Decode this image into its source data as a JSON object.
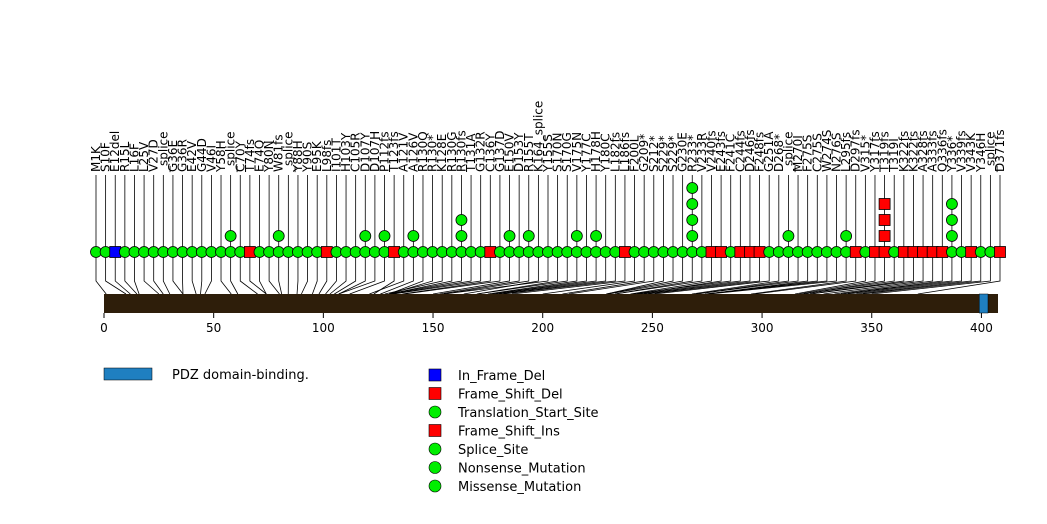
{
  "chart_data": {
    "type": "lollipop",
    "protein_length": 403,
    "axis": {
      "xlim": [
        0,
        403
      ],
      "ticks": [
        0,
        50,
        100,
        150,
        200,
        250,
        300,
        350,
        400
      ]
    },
    "domains": [
      {
        "name": "PDZ domain-binding.",
        "start": 399,
        "end": 403,
        "color": "#1f7fc0"
      }
    ],
    "legend": {
      "domains": [
        {
          "label": "PDZ domain-binding.",
          "color": "#1f7fc0"
        }
      ],
      "mutation_types": [
        {
          "label": "In_Frame_Del",
          "shape": "square",
          "color": "#0000ff"
        },
        {
          "label": "Frame_Shift_Del",
          "shape": "square",
          "color": "#ff0000"
        },
        {
          "label": "Translation_Start_Site",
          "shape": "circle",
          "color": "#00ee00"
        },
        {
          "label": "Frame_Shift_Ins",
          "shape": "square",
          "color": "#ff0000"
        },
        {
          "label": "Splice_Site",
          "shape": "circle",
          "color": "#00ee00"
        },
        {
          "label": "Nonsense_Mutation",
          "shape": "circle",
          "color": "#00ee00"
        },
        {
          "label": "Missense_Mutation",
          "shape": "circle",
          "color": "#00ee00"
        }
      ]
    },
    "mutations": [
      {
        "label": "M1K",
        "pos": 1,
        "count": 1,
        "shape": "circle",
        "color": "#00ee00"
      },
      {
        "label": "S10F",
        "pos": 10,
        "count": 1,
        "shape": "circle",
        "color": "#00ee00"
      },
      {
        "label": "E12del",
        "pos": 12,
        "count": 1,
        "shape": "square",
        "color": "#0000ff"
      },
      {
        "label": "R15L",
        "pos": 15,
        "count": 1,
        "shape": "circle",
        "color": "#00ee00"
      },
      {
        "label": "L16F",
        "pos": 16,
        "count": 1,
        "shape": "circle",
        "color": "#00ee00"
      },
      {
        "label": "L25V",
        "pos": 25,
        "count": 1,
        "shape": "circle",
        "color": "#00ee00"
      },
      {
        "label": "V27D",
        "pos": 27,
        "count": 1,
        "shape": "circle",
        "color": "#00ee00"
      },
      {
        "label": "_splice",
        "pos": 30,
        "count": 1,
        "shape": "circle",
        "color": "#00ee00"
      },
      {
        "label": "G36E",
        "pos": 36,
        "count": 1,
        "shape": "circle",
        "color": "#00ee00"
      },
      {
        "label": "G36R",
        "pos": 36,
        "count": 1,
        "shape": "circle",
        "color": "#00ee00"
      },
      {
        "label": "E42V",
        "pos": 42,
        "count": 1,
        "shape": "circle",
        "color": "#00ee00"
      },
      {
        "label": "G44D",
        "pos": 44,
        "count": 1,
        "shape": "circle",
        "color": "#00ee00"
      },
      {
        "label": "V46I",
        "pos": 46,
        "count": 1,
        "shape": "circle",
        "color": "#00ee00"
      },
      {
        "label": "Y58H",
        "pos": 58,
        "count": 1,
        "shape": "circle",
        "color": "#00ee00"
      },
      {
        "label": "_splice",
        "pos": 61,
        "count": 2,
        "shape": "circle",
        "color": "#00ee00"
      },
      {
        "label": "C70Y",
        "pos": 70,
        "count": 1,
        "shape": "circle",
        "color": "#00ee00"
      },
      {
        "label": "T74fs",
        "pos": 74,
        "count": 1,
        "shape": "square",
        "color": "#ff0000"
      },
      {
        "label": "E74Q",
        "pos": 74,
        "count": 1,
        "shape": "circle",
        "color": "#00ee00"
      },
      {
        "label": "Y80N",
        "pos": 80,
        "count": 1,
        "shape": "circle",
        "color": "#00ee00"
      },
      {
        "label": "W81fs",
        "pos": 81,
        "count": 2,
        "shape": "circle",
        "color": "#00ee00"
      },
      {
        "label": "_splice",
        "pos": 84,
        "count": 1,
        "shape": "circle",
        "color": "#00ee00"
      },
      {
        "label": "Y88H",
        "pos": 88,
        "count": 1,
        "shape": "circle",
        "color": "#00ee00"
      },
      {
        "label": "Y90S",
        "pos": 90,
        "count": 1,
        "shape": "circle",
        "color": "#00ee00"
      },
      {
        "label": "E95K",
        "pos": 95,
        "count": 1,
        "shape": "circle",
        "color": "#00ee00"
      },
      {
        "label": "L98fs",
        "pos": 98,
        "count": 1,
        "shape": "square",
        "color": "#ff0000"
      },
      {
        "label": "I101T",
        "pos": 101,
        "count": 1,
        "shape": "circle",
        "color": "#00ee00"
      },
      {
        "label": "H103Y",
        "pos": 103,
        "count": 1,
        "shape": "circle",
        "color": "#00ee00"
      },
      {
        "label": "C105R",
        "pos": 105,
        "count": 1,
        "shape": "circle",
        "color": "#00ee00"
      },
      {
        "label": "D107Y",
        "pos": 107,
        "count": 2,
        "shape": "circle",
        "color": "#00ee00"
      },
      {
        "label": "D107H",
        "pos": 107,
        "count": 1,
        "shape": "circle",
        "color": "#00ee00"
      },
      {
        "label": "P112fs",
        "pos": 112,
        "count": 2,
        "shape": "circle",
        "color": "#00ee00"
      },
      {
        "label": "T123fs",
        "pos": 123,
        "count": 1,
        "shape": "square",
        "color": "#ff0000"
      },
      {
        "label": "A121V",
        "pos": 121,
        "count": 1,
        "shape": "circle",
        "color": "#00ee00"
      },
      {
        "label": "A126V",
        "pos": 126,
        "count": 2,
        "shape": "circle",
        "color": "#00ee00"
      },
      {
        "label": "R130Q",
        "pos": 130,
        "count": 1,
        "shape": "circle",
        "color": "#00ee00"
      },
      {
        "label": "R130*",
        "pos": 130,
        "count": 1,
        "shape": "circle",
        "color": "#00ee00"
      },
      {
        "label": "K128E",
        "pos": 128,
        "count": 1,
        "shape": "circle",
        "color": "#00ee00"
      },
      {
        "label": "R130G",
        "pos": 130,
        "count": 1,
        "shape": "circle",
        "color": "#00ee00"
      },
      {
        "label": "R130fs",
        "pos": 130,
        "count": 3,
        "shape": "circle",
        "color": "#00ee00"
      },
      {
        "label": "T131A",
        "pos": 131,
        "count": 1,
        "shape": "circle",
        "color": "#00ee00"
      },
      {
        "label": "G132R",
        "pos": 132,
        "count": 1,
        "shape": "circle",
        "color": "#00ee00"
      },
      {
        "label": "C136Y",
        "pos": 136,
        "count": 1,
        "shape": "square",
        "color": "#ff0000"
      },
      {
        "label": "G137D",
        "pos": 137,
        "count": 1,
        "shape": "circle",
        "color": "#00ee00"
      },
      {
        "label": "E150V",
        "pos": 150,
        "count": 2,
        "shape": "circle",
        "color": "#00ee00"
      },
      {
        "label": "D153Y",
        "pos": 153,
        "count": 1,
        "shape": "circle",
        "color": "#00ee00"
      },
      {
        "label": "R155T",
        "pos": 155,
        "count": 2,
        "shape": "circle",
        "color": "#00ee00"
      },
      {
        "label": "K164_splice",
        "pos": 164,
        "count": 1,
        "shape": "circle",
        "color": "#00ee00"
      },
      {
        "label": "Y155S",
        "pos": 155,
        "count": 1,
        "shape": "circle",
        "color": "#00ee00"
      },
      {
        "label": "S170N",
        "pos": 170,
        "count": 1,
        "shape": "circle",
        "color": "#00ee00"
      },
      {
        "label": "S170G",
        "pos": 170,
        "count": 1,
        "shape": "circle",
        "color": "#00ee00"
      },
      {
        "label": "V175N",
        "pos": 175,
        "count": 2,
        "shape": "circle",
        "color": "#00ee00"
      },
      {
        "label": "Y177C",
        "pos": 177,
        "count": 1,
        "shape": "circle",
        "color": "#00ee00"
      },
      {
        "label": "H178H",
        "pos": 178,
        "count": 2,
        "shape": "circle",
        "color": "#00ee00"
      },
      {
        "label": "Y180C",
        "pos": 180,
        "count": 1,
        "shape": "circle",
        "color": "#00ee00"
      },
      {
        "label": "L182fs",
        "pos": 182,
        "count": 1,
        "shape": "circle",
        "color": "#00ee00"
      },
      {
        "label": "L186fs",
        "pos": 186,
        "count": 1,
        "shape": "square",
        "color": "#ff0000"
      },
      {
        "label": "F200L",
        "pos": 200,
        "count": 1,
        "shape": "circle",
        "color": "#00ee00"
      },
      {
        "label": "G209*",
        "pos": 209,
        "count": 1,
        "shape": "circle",
        "color": "#00ee00"
      },
      {
        "label": "S212*",
        "pos": 212,
        "count": 1,
        "shape": "circle",
        "color": "#00ee00"
      },
      {
        "label": "S229*",
        "pos": 229,
        "count": 1,
        "shape": "circle",
        "color": "#00ee00"
      },
      {
        "label": "S229*",
        "pos": 229,
        "count": 1,
        "shape": "circle",
        "color": "#00ee00"
      },
      {
        "label": "G230E",
        "pos": 230,
        "count": 1,
        "shape": "circle",
        "color": "#00ee00"
      },
      {
        "label": "R233*",
        "pos": 233,
        "count": 5,
        "shape": "circle",
        "color": "#00ee00"
      },
      {
        "label": "V233R",
        "pos": 233,
        "count": 1,
        "shape": "circle",
        "color": "#00ee00"
      },
      {
        "label": "V240fs",
        "pos": 240,
        "count": 1,
        "shape": "square",
        "color": "#ff0000"
      },
      {
        "label": "E243fs",
        "pos": 243,
        "count": 1,
        "shape": "square",
        "color": "#ff0000"
      },
      {
        "label": "F241C",
        "pos": 241,
        "count": 1,
        "shape": "circle",
        "color": "#00ee00"
      },
      {
        "label": "C244fs",
        "pos": 244,
        "count": 1,
        "shape": "square",
        "color": "#ff0000"
      },
      {
        "label": "D246fs",
        "pos": 246,
        "count": 1,
        "shape": "square",
        "color": "#ff0000"
      },
      {
        "label": "F248fs",
        "pos": 248,
        "count": 1,
        "shape": "square",
        "color": "#ff0000"
      },
      {
        "label": "G251A",
        "pos": 251,
        "count": 1,
        "shape": "circle",
        "color": "#00ee00"
      },
      {
        "label": "D268*",
        "pos": 268,
        "count": 1,
        "shape": "circle",
        "color": "#00ee00"
      },
      {
        "label": "_splice",
        "pos": 270,
        "count": 2,
        "shape": "circle",
        "color": "#00ee00"
      },
      {
        "label": "M270I",
        "pos": 270,
        "count": 1,
        "shape": "circle",
        "color": "#00ee00"
      },
      {
        "label": "F275S",
        "pos": 275,
        "count": 1,
        "shape": "circle",
        "color": "#00ee00"
      },
      {
        "label": "C275S",
        "pos": 275,
        "count": 1,
        "shape": "circle",
        "color": "#00ee00"
      },
      {
        "label": "W274S",
        "pos": 274,
        "count": 1,
        "shape": "circle",
        "color": "#00ee00"
      },
      {
        "label": "N276S",
        "pos": 276,
        "count": 1,
        "shape": "circle",
        "color": "#00ee00"
      },
      {
        "label": "L295fs",
        "pos": 295,
        "count": 2,
        "shape": "circle",
        "color": "#00ee00"
      },
      {
        "label": "D297fs",
        "pos": 297,
        "count": 1,
        "shape": "square",
        "color": "#ff0000"
      },
      {
        "label": "V315*",
        "pos": 315,
        "count": 1,
        "shape": "circle",
        "color": "#00ee00"
      },
      {
        "label": "Y317fs",
        "pos": 317,
        "count": 1,
        "shape": "square",
        "color": "#ff0000"
      },
      {
        "label": "T319fs",
        "pos": 319,
        "count": 4,
        "shape": "square",
        "color": "#ff0000"
      },
      {
        "label": "T319I",
        "pos": 319,
        "count": 1,
        "shape": "circle",
        "color": "#00ee00"
      },
      {
        "label": "K322fs",
        "pos": 322,
        "count": 1,
        "shape": "square",
        "color": "#ff0000"
      },
      {
        "label": "K322fs",
        "pos": 322,
        "count": 1,
        "shape": "square",
        "color": "#ff0000"
      },
      {
        "label": "A328fs",
        "pos": 328,
        "count": 1,
        "shape": "square",
        "color": "#ff0000"
      },
      {
        "label": "A333fs",
        "pos": 333,
        "count": 1,
        "shape": "square",
        "color": "#ff0000"
      },
      {
        "label": "Q336fs",
        "pos": 336,
        "count": 1,
        "shape": "square",
        "color": "#ff0000"
      },
      {
        "label": "Y336*",
        "pos": 336,
        "count": 4,
        "shape": "circle",
        "color": "#00ee00"
      },
      {
        "label": "V339fs",
        "pos": 339,
        "count": 1,
        "shape": "circle",
        "color": "#00ee00"
      },
      {
        "label": "V343K",
        "pos": 343,
        "count": 1,
        "shape": "square",
        "color": "#ff0000"
      },
      {
        "label": "Y346H",
        "pos": 346,
        "count": 1,
        "shape": "circle",
        "color": "#00ee00"
      },
      {
        "label": "_splice",
        "pos": 350,
        "count": 1,
        "shape": "circle",
        "color": "#00ee00"
      },
      {
        "label": "D371fs",
        "pos": 371,
        "count": 1,
        "shape": "square",
        "color": "#ff0000"
      }
    ]
  }
}
